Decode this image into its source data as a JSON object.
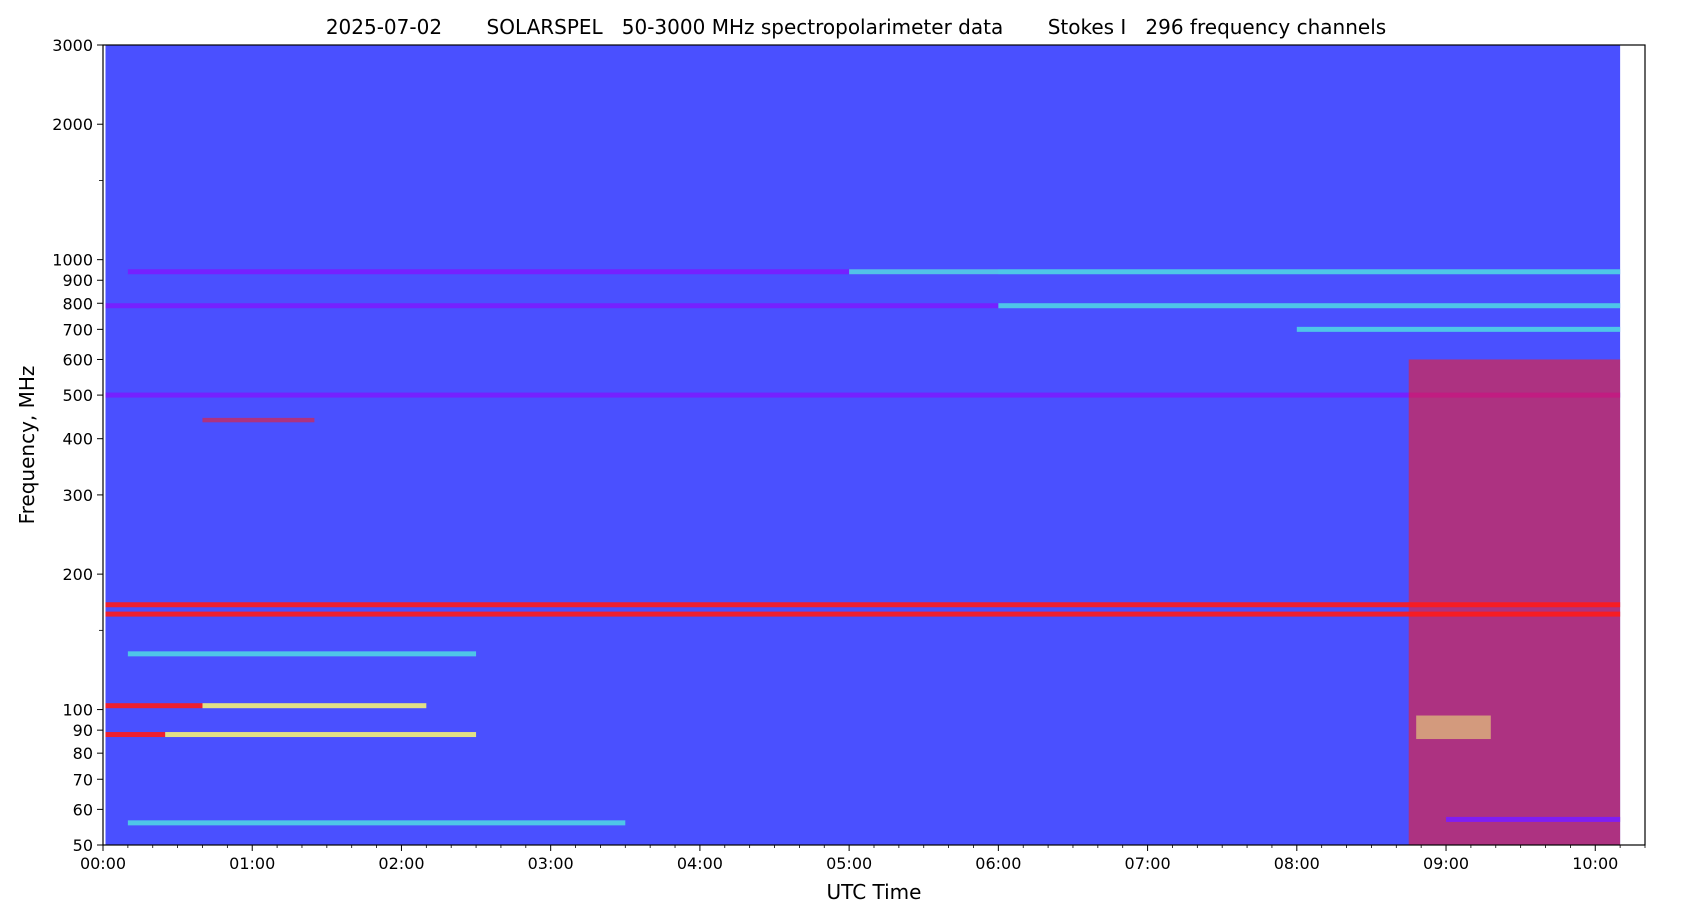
{
  "chart_data": {
    "type": "heatmap",
    "title": "2025-07-02       SOLARSPEL   50-3000 MHz spectropolarimeter data       Stokes I   296 frequency channels",
    "xlabel": "UTC Time",
    "ylabel": "Frequency, MHz",
    "x_axis": {
      "range": [
        "00:00",
        "10:20"
      ],
      "tick_labels": [
        "00:00",
        "01:00",
        "02:00",
        "03:00",
        "04:00",
        "05:00",
        "06:00",
        "07:00",
        "08:00",
        "09:00",
        "10:00"
      ],
      "data_start": "00:01",
      "data_end": "10:10"
    },
    "y_axis": {
      "scale": "log",
      "range_mhz": [
        50,
        3000
      ],
      "major_tick_labels": [
        50,
        60,
        70,
        80,
        90,
        100,
        200,
        300,
        400,
        500,
        600,
        700,
        800,
        900,
        1000,
        2000,
        3000
      ],
      "minor_ticks_mhz": [
        1500,
        150
      ]
    },
    "colormap": "rainbow",
    "colors": {
      "background": "#4a50ff",
      "intense": "#ff1a1a",
      "bright": "#f2f07a",
      "mid": "#4fd3e6",
      "low": "#7a1cff"
    },
    "features": [
      {
        "kind": "band",
        "f_mhz": 940,
        "t": [
          "00:10",
          "06:00"
        ],
        "color": "#7a1cff"
      },
      {
        "kind": "band",
        "f_mhz": 940,
        "t": [
          "05:00",
          "10:10"
        ],
        "color": "#4fd3e6"
      },
      {
        "kind": "band",
        "f_mhz": 790,
        "t": [
          "00:01",
          "06:00"
        ],
        "color": "#7a1cff"
      },
      {
        "kind": "band",
        "f_mhz": 790,
        "t": [
          "06:00",
          "10:10"
        ],
        "color": "#4fd3e6"
      },
      {
        "kind": "band",
        "f_mhz": 700,
        "t": [
          "08:00",
          "10:10"
        ],
        "color": "#4fd3e6"
      },
      {
        "kind": "band",
        "f_mhz": 500,
        "t": [
          "00:01",
          "10:10"
        ],
        "color": "#7a1cff"
      },
      {
        "kind": "band",
        "f_mhz": 163,
        "t": [
          "00:01",
          "10:10"
        ],
        "color": "#ff1a1a"
      },
      {
        "kind": "band",
        "f_mhz": 171,
        "t": [
          "00:01",
          "10:10"
        ],
        "color": "#ff1a1a"
      },
      {
        "kind": "band",
        "f_mhz": 133,
        "t": [
          "00:10",
          "02:30"
        ],
        "color": "#4fd3e6"
      },
      {
        "kind": "band",
        "f_mhz": 102,
        "t": [
          "00:01",
          "00:40"
        ],
        "color": "#ff1a1a"
      },
      {
        "kind": "band",
        "f_mhz": 102,
        "t": [
          "00:40",
          "02:10"
        ],
        "color": "#f2f07a"
      },
      {
        "kind": "band",
        "f_mhz": 88,
        "t": [
          "00:01",
          "00:25"
        ],
        "color": "#ff1a1a"
      },
      {
        "kind": "band",
        "f_mhz": 88,
        "t": [
          "00:25",
          "02:30"
        ],
        "color": "#f2f07a"
      },
      {
        "kind": "band",
        "f_mhz": 56,
        "t": [
          "00:10",
          "03:30"
        ],
        "color": "#4fd3e6"
      },
      {
        "kind": "burst",
        "t": [
          "08:45",
          "10:10"
        ],
        "f_mhz": [
          50,
          600
        ],
        "color": "#ff1a1a"
      },
      {
        "kind": "burst",
        "t": [
          "08:48",
          "09:18"
        ],
        "f_mhz": [
          86,
          97
        ],
        "color": "#f2f07a"
      },
      {
        "kind": "band",
        "f_mhz": 57,
        "t": [
          "09:00",
          "10:10"
        ],
        "color": "#7a1cff"
      },
      {
        "kind": "burst",
        "t": [
          "00:40",
          "01:25"
        ],
        "f_mhz": [
          435,
          445
        ],
        "color": "#ff1a1a"
      }
    ]
  }
}
